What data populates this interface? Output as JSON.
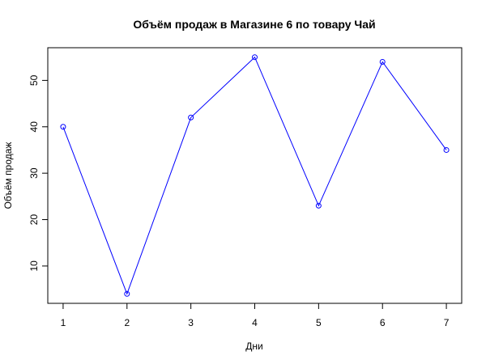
{
  "chart_data": {
    "type": "line",
    "title": "Объём продаж в Магазине 6 по товару Чай",
    "xlabel": "Дни",
    "ylabel": "Объём продаж",
    "x": [
      1,
      2,
      3,
      4,
      5,
      6,
      7
    ],
    "values": [
      40,
      4,
      42,
      55,
      23,
      54,
      35
    ],
    "xlim": [
      0.76,
      7.24
    ],
    "ylim": [
      1.96,
      57.04
    ],
    "xticks": [
      "1",
      "2",
      "3",
      "4",
      "5",
      "6",
      "7"
    ],
    "yticks": [
      "10",
      "20",
      "30",
      "40",
      "50"
    ],
    "grid": false,
    "markers": "open-circle",
    "color": "#0000ff"
  }
}
